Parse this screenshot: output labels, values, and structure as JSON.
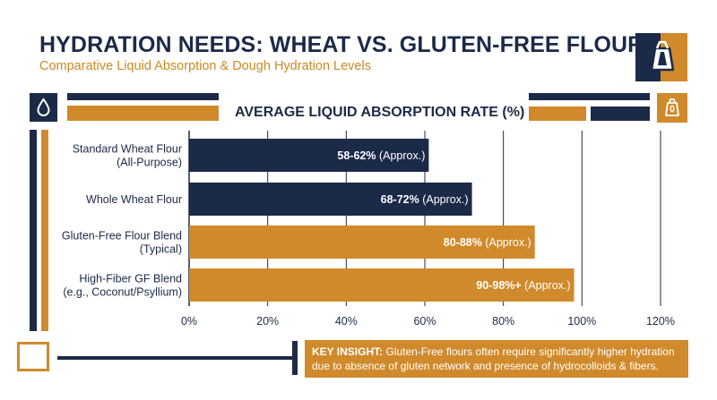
{
  "header": {
    "title": "HYDRATION NEEDS: WHEAT VS. GLUTEN-FREE FLOURS",
    "subtitle": "Comparative Liquid Absorption & Dough Hydration Levels"
  },
  "icons": {
    "top_right": "flour-bag-icon",
    "left": "water-drop-icon",
    "right": "grain-bag-icon"
  },
  "colors": {
    "navy": "#1b2a47",
    "gold": "#d08a2b",
    "wheat_series": "#1b2a47",
    "gluten_free_series": "#d08a2b"
  },
  "chart_data": {
    "type": "bar",
    "orientation": "horizontal",
    "title": "AVERAGE LIQUID ABSORPTION RATE (%)",
    "categories": [
      [
        "Standard Wheat Flour",
        "(All-Purpose)"
      ],
      [
        "Whole Wheat Flour"
      ],
      [
        "Gluten-Free Flour Blend",
        "(Typical)"
      ],
      [
        "High-Fiber GF Blend",
        "(e.g., Coconut/Psyllium)"
      ]
    ],
    "values": [
      61,
      72,
      88,
      98
    ],
    "value_labels": [
      {
        "range": "58-62%",
        "note": "(Approx.)"
      },
      {
        "range": "68-72%",
        "note": "(Approx.)"
      },
      {
        "range": "80-88%",
        "note": "(Approx.)"
      },
      {
        "range": "90-98%+",
        "note": "(Approx.)"
      }
    ],
    "bar_colors": [
      "#1b2a47",
      "#1b2a47",
      "#d08a2b",
      "#d08a2b"
    ],
    "xlim": [
      0,
      120
    ],
    "xticks": [
      "0%",
      "20%",
      "40%",
      "60%",
      "80%",
      "100%",
      "120%"
    ],
    "grid": true
  },
  "insight": {
    "label": "KEY INSIGHT:",
    "text": " Gluten-Free flours often require significantly higher hydration due to absence of gluten network and presence of hydrocolloids & fibers."
  }
}
